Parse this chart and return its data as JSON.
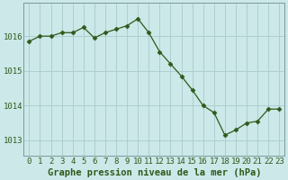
{
  "x": [
    0,
    1,
    2,
    3,
    4,
    5,
    6,
    7,
    8,
    9,
    10,
    11,
    12,
    13,
    14,
    15,
    16,
    17,
    18,
    19,
    20,
    21,
    22,
    23
  ],
  "y": [
    1015.85,
    1016.0,
    1016.0,
    1016.1,
    1016.1,
    1016.25,
    1015.95,
    1016.1,
    1016.2,
    1016.3,
    1016.5,
    1016.1,
    1015.55,
    1015.2,
    1014.85,
    1014.45,
    1014.0,
    1013.8,
    1013.15,
    1013.3,
    1013.5,
    1013.55,
    1013.9,
    1013.9
  ],
  "line_color": "#2d5a1b",
  "marker": "D",
  "marker_size": 2.5,
  "bg_color": "#cce8e8",
  "grid_color": "#a8cccc",
  "ylabel_ticks": [
    1013,
    1014,
    1015,
    1016
  ],
  "xlabel_ticks": [
    0,
    1,
    2,
    3,
    4,
    5,
    6,
    7,
    8,
    9,
    10,
    11,
    12,
    13,
    14,
    15,
    16,
    17,
    18,
    19,
    20,
    21,
    22,
    23
  ],
  "ylim": [
    1012.55,
    1016.95
  ],
  "xlim": [
    -0.5,
    23.5
  ],
  "xlabel": "Graphe pression niveau de la mer (hPa)",
  "xlabel_fontsize": 7.5,
  "tick_fontsize": 6.5,
  "tick_color": "#2d5a1b",
  "axis_color": "#7a9a9a"
}
